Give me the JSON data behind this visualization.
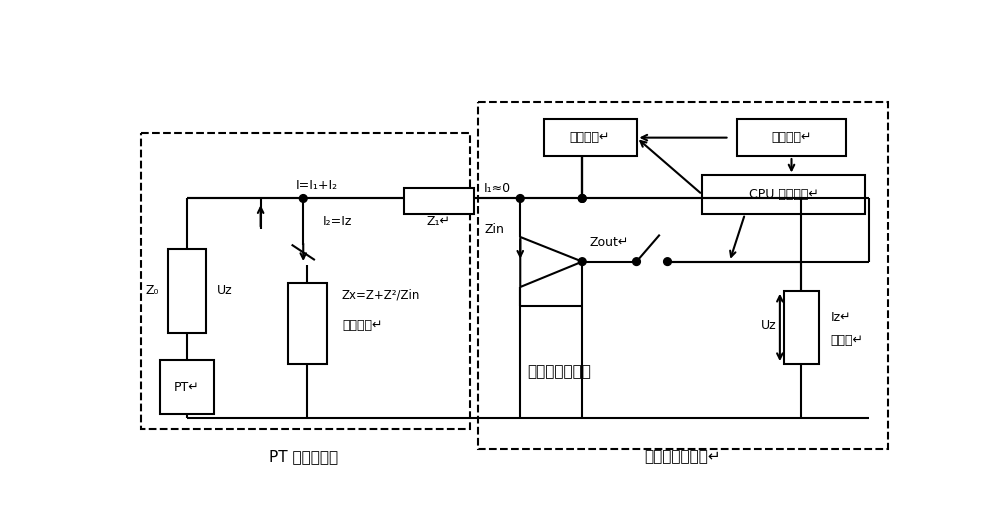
{
  "bg_color": "#ffffff",
  "lw": 1.5,
  "blw": 1.5,
  "labels": {
    "I_eq": "I=I₁+I₂",
    "I2_eq": "I₂=Iz",
    "I1_eq": "I₁≈0",
    "Z0": "Z₀",
    "Uz_left": "Uz",
    "PT": "PT↵",
    "Z1": "Z₁↵",
    "Zx": "Zx=Z+Z²/Zin",
    "elec_resist": "电阵模块↵",
    "Zin": "Zin",
    "Zout": "Zout↵",
    "voltage_follower": "电压跟随器模块",
    "tougou": "投切模块↵",
    "wendu": "温度模块↵",
    "cpu": "CPU 监控模块↵",
    "Uz_right": "Uz",
    "Iz_right": "Iz↵",
    "energy_meter": "电能表↵",
    "pt_box": "PT 出口端子笱",
    "control_room": "监控室计量盘柜↵"
  },
  "fig_width": 10.0,
  "fig_height": 5.31
}
